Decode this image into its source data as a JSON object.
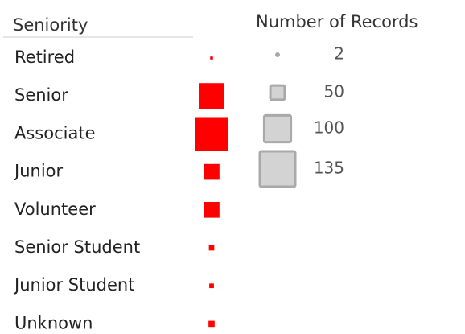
{
  "chart_data": {
    "type": "square",
    "header": "Seniority",
    "categories": [
      "Retired",
      "Senior",
      "Associate",
      "Junior",
      "Volunteer",
      "Senior Student",
      "Junior Student",
      "Unknown"
    ],
    "values": [
      4,
      96,
      128,
      56,
      56,
      14,
      11,
      17
    ],
    "color": "#ff0000",
    "size_legend": {
      "title": "Number of Records",
      "values": [
        2,
        50,
        100,
        135
      ],
      "color": "#d3d3d3",
      "border": "#a9a9a9"
    }
  }
}
